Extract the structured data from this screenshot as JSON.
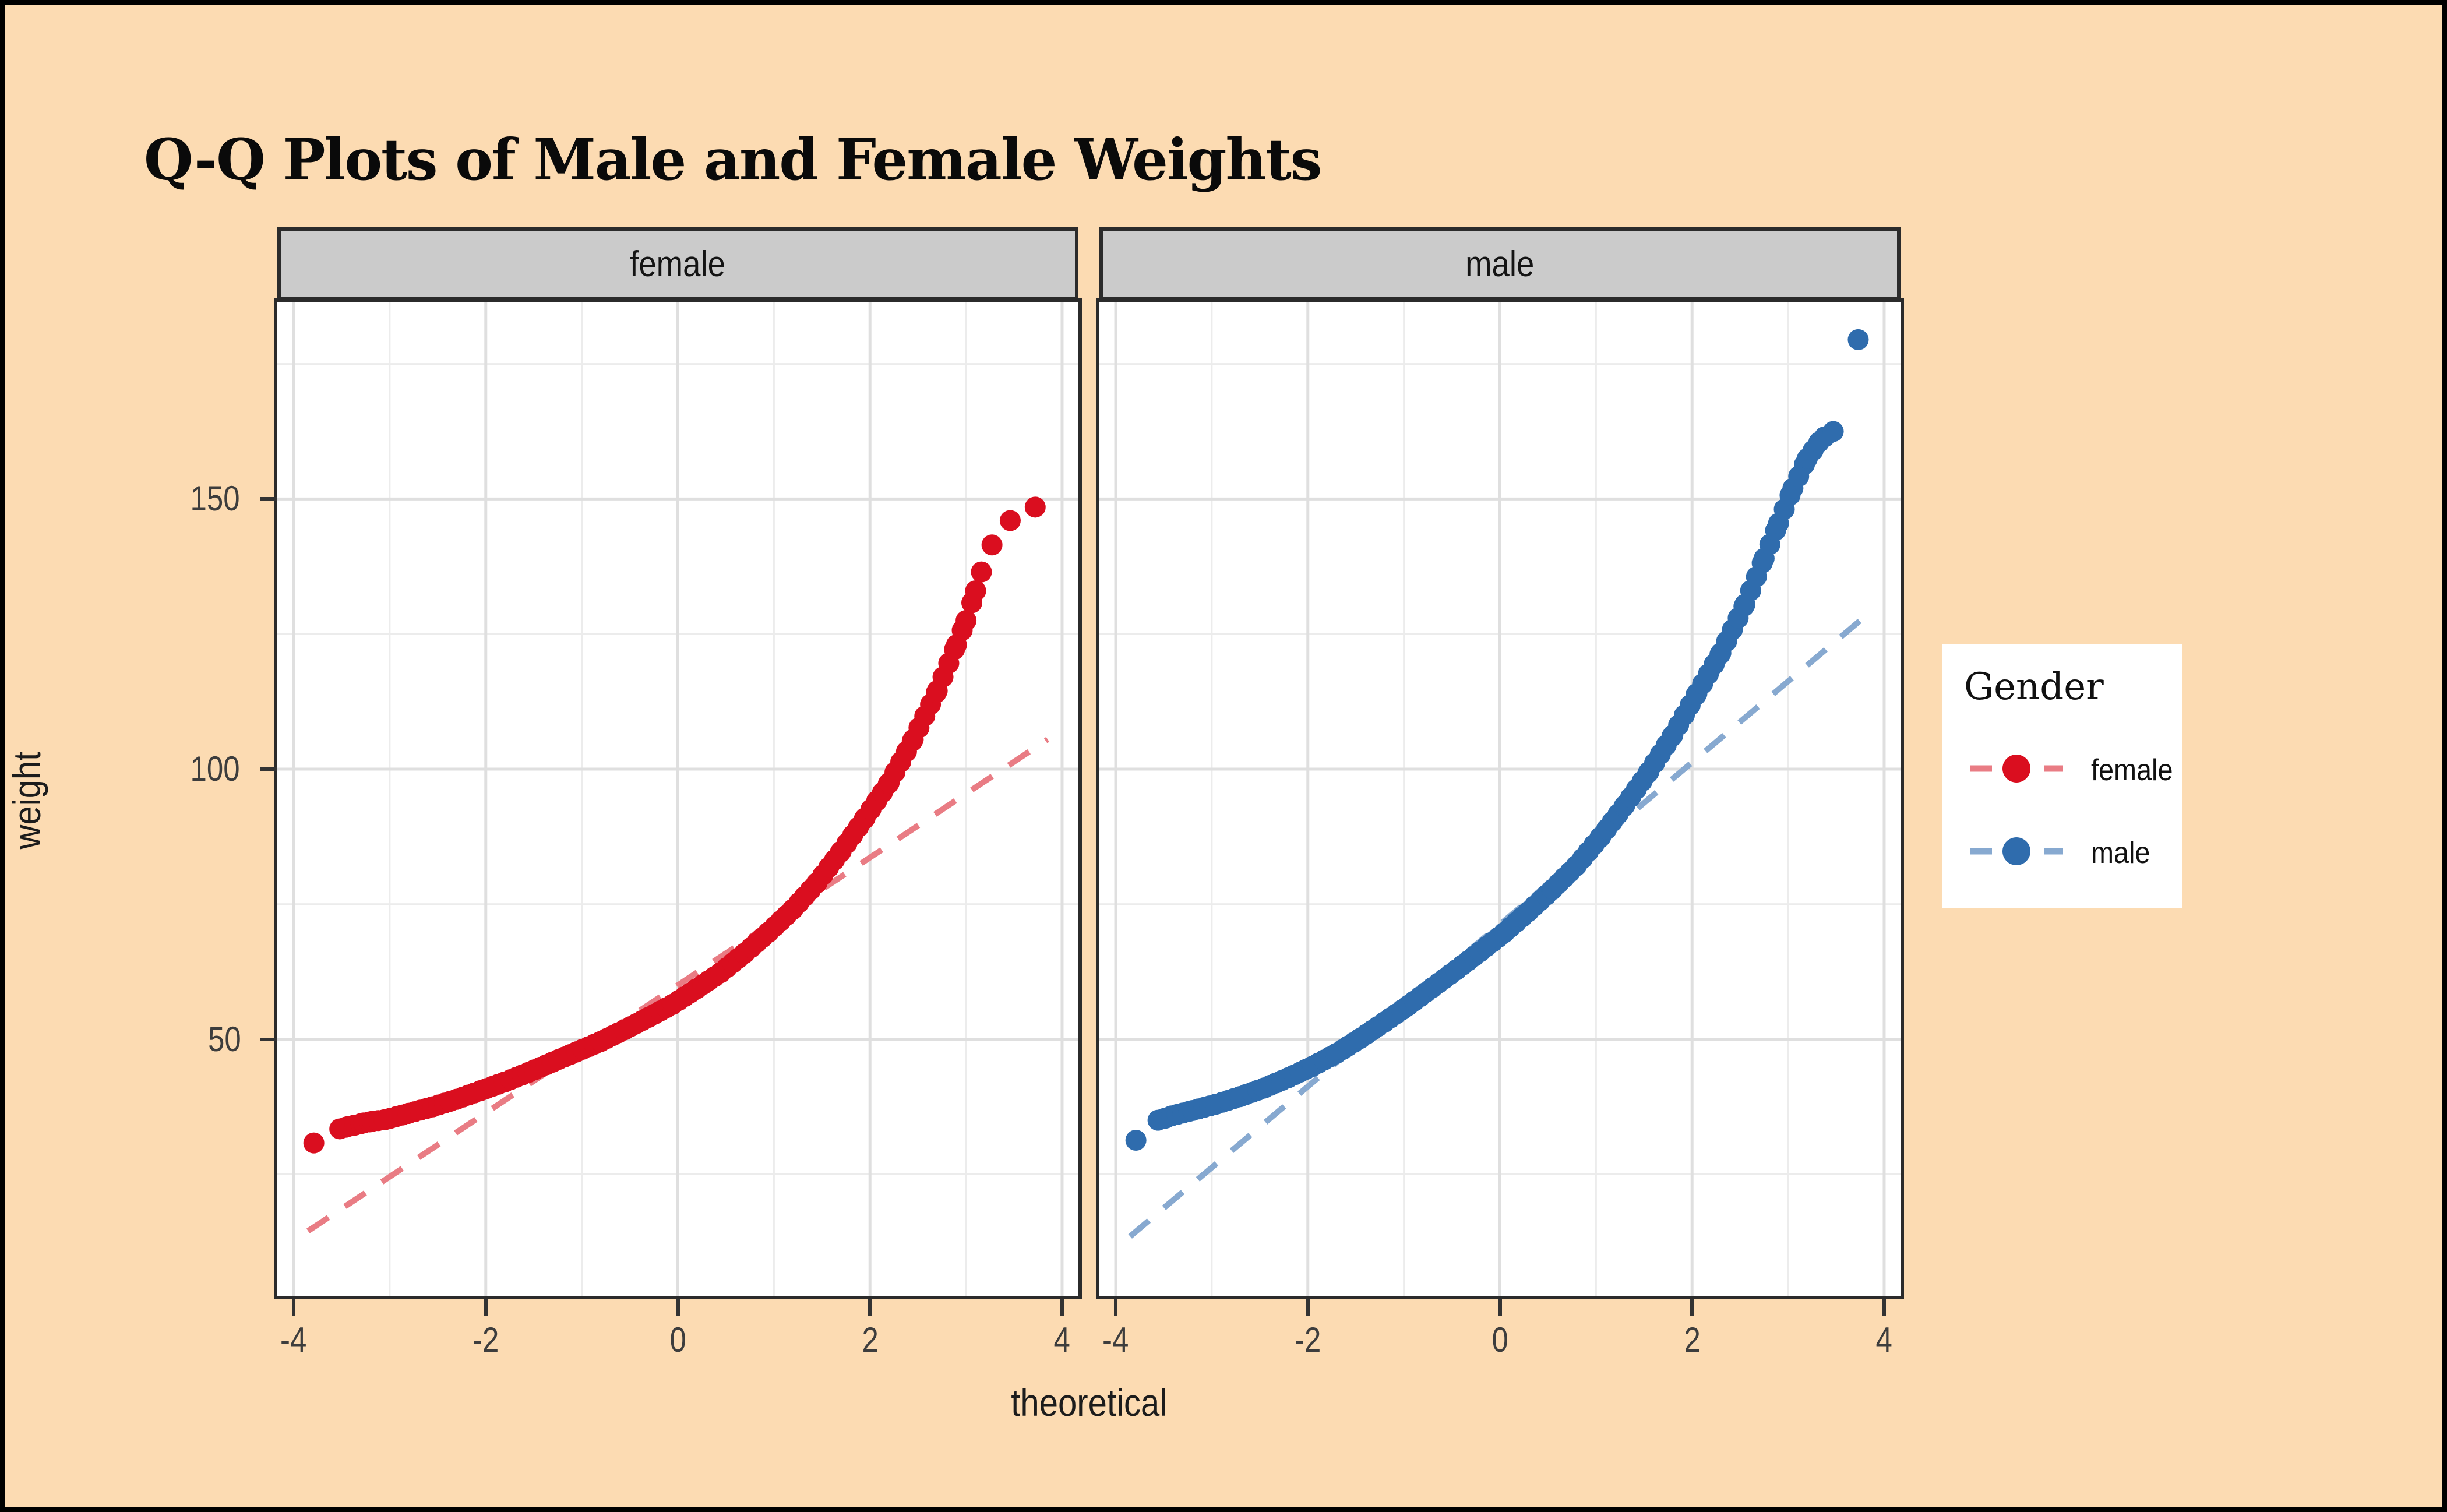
{
  "page": {
    "background": "#FCDBB2",
    "frame_color": "#000000",
    "panel_background": "#FFFFFF",
    "strip_background": "#CBCBCB",
    "panel_border": "#2B2B2B",
    "grid_major": "#DFDFDF",
    "grid_minor": "#ECECEC",
    "tick_color": "#333333",
    "text_color": "#3d3d3d"
  },
  "title": "Q-Q Plots of Male and Female Weights",
  "legend": {
    "title": "Gender",
    "items": [
      {
        "label": "female",
        "point_color": "#DA0E1F",
        "line_color": "#E97C84"
      },
      {
        "label": "male",
        "point_color": "#2F6CAD",
        "line_color": "#87A9D0"
      }
    ]
  },
  "chart_data": {
    "type": "scatter",
    "title": "Q-Q Plots of Male and Female Weights",
    "xlabel": "theoretical",
    "ylabel": "weight",
    "x_ticks": [
      -4,
      -2,
      0,
      2,
      4
    ],
    "x_minor": [
      -3,
      -1,
      1,
      3
    ],
    "y_ticks": [
      50,
      100,
      150
    ],
    "y_minor": [
      25,
      75,
      125,
      175
    ],
    "x_domain": [
      -4.17,
      4.17
    ],
    "y_domain": [
      2.5,
      186.5
    ],
    "grid": true,
    "legend_position": "right",
    "densify_step": 0.06,
    "point_radius": 18,
    "facets": [
      {
        "label": "female",
        "point_color": "#DA0E1F",
        "line_color": "#E97C84",
        "qq_line": {
          "x1": -3.85,
          "y1": 14.5,
          "x2": 3.85,
          "y2": 105.5
        },
        "trail": [
          [
            -3.52,
            33.4
          ],
          [
            -3.44,
            33.8
          ],
          [
            -3.36,
            34.1
          ],
          [
            -3.27,
            34.5
          ],
          [
            -3.18,
            34.8
          ],
          [
            -3.05,
            35.1
          ],
          [
            -2.8,
            36.3
          ],
          [
            -2.55,
            37.5
          ],
          [
            -2.3,
            38.9
          ],
          [
            -2.05,
            40.5
          ],
          [
            -1.8,
            42.1
          ],
          [
            -1.55,
            43.9
          ],
          [
            -1.3,
            45.8
          ],
          [
            -1.05,
            47.7
          ],
          [
            -0.8,
            49.6
          ],
          [
            -0.55,
            51.8
          ],
          [
            -0.3,
            54.1
          ],
          [
            -0.05,
            56.5
          ],
          [
            0.2,
            59.4
          ],
          [
            0.45,
            62.4
          ],
          [
            0.7,
            66.0
          ],
          [
            0.95,
            69.9
          ],
          [
            1.2,
            74.1
          ],
          [
            1.45,
            79.0
          ],
          [
            1.7,
            84.8
          ],
          [
            1.95,
            91.0
          ],
          [
            2.2,
            97.5
          ],
          [
            2.45,
            105.5
          ],
          [
            2.7,
            114.5
          ],
          [
            2.9,
            123.0
          ],
          [
            3.0,
            127.5
          ],
          [
            3.1,
            133.0
          ],
          [
            3.16,
            136.5
          ]
        ],
        "points": [
          [
            -3.79,
            30.8
          ],
          [
            3.27,
            141.5
          ],
          [
            3.46,
            146.0
          ],
          [
            3.72,
            148.5
          ]
        ]
      },
      {
        "label": "male",
        "point_color": "#2F6CAD",
        "line_color": "#87A9D0",
        "qq_line": {
          "x1": -3.85,
          "y1": 13.5,
          "x2": 3.85,
          "y2": 129.0
        },
        "trail": [
          [
            -3.56,
            35.0
          ],
          [
            -3.48,
            35.4
          ],
          [
            -3.42,
            35.8
          ],
          [
            -3.2,
            36.8
          ],
          [
            -2.95,
            38.0
          ],
          [
            -2.7,
            39.4
          ],
          [
            -2.45,
            41.0
          ],
          [
            -2.2,
            42.9
          ],
          [
            -1.95,
            45.0
          ],
          [
            -1.7,
            47.4
          ],
          [
            -1.45,
            50.2
          ],
          [
            -1.2,
            53.2
          ],
          [
            -0.95,
            56.3
          ],
          [
            -0.7,
            59.6
          ],
          [
            -0.45,
            62.9
          ],
          [
            -0.2,
            66.3
          ],
          [
            0.05,
            69.8
          ],
          [
            0.3,
            73.7
          ],
          [
            0.55,
            77.8
          ],
          [
            0.8,
            82.2
          ],
          [
            1.05,
            87.5
          ],
          [
            1.3,
            93.3
          ],
          [
            1.55,
            99.5
          ],
          [
            1.8,
            106.3
          ],
          [
            2.05,
            114.0
          ],
          [
            2.3,
            121.5
          ],
          [
            2.55,
            130.5
          ],
          [
            2.75,
            139.0
          ],
          [
            2.9,
            145.5
          ],
          [
            3.05,
            152.0
          ],
          [
            3.2,
            157.5
          ],
          [
            3.32,
            160.5
          ]
        ],
        "points": [
          [
            -3.79,
            31.3
          ],
          [
            3.38,
            161.5
          ],
          [
            3.47,
            162.5
          ],
          [
            3.73,
            179.5
          ]
        ]
      }
    ]
  }
}
